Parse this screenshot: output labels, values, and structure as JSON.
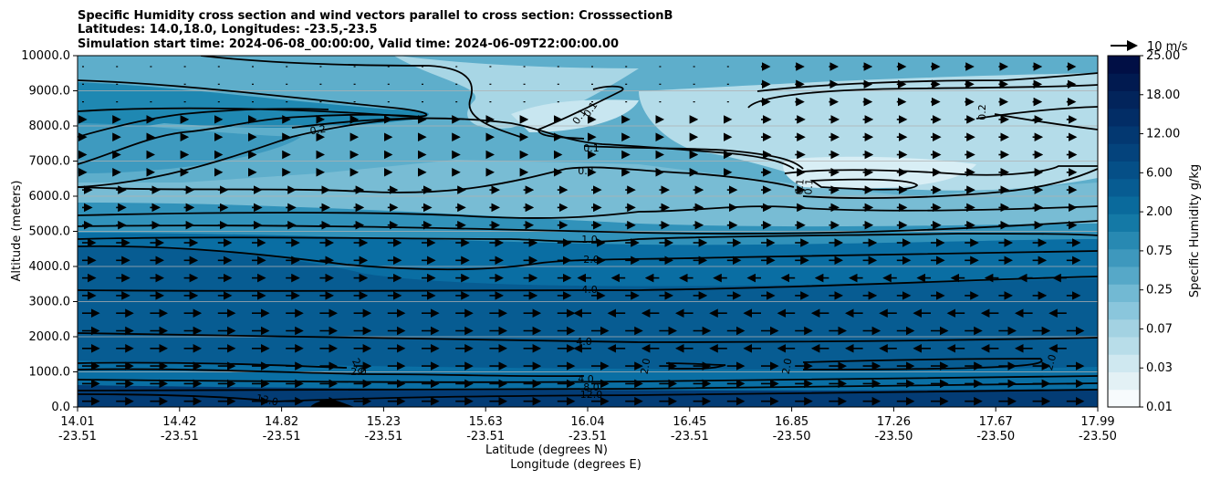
{
  "chart_data": {
    "type": "contour",
    "title_lines": [
      "Specific Humidity cross section and wind vectors parallel to cross section: CrosssectionB",
      "Latitudes: 14.0,18.0, Longitudes: -23.5,-23.5",
      "Simulation start time: 2024-06-08_00:00:00, Valid time: 2024-06-09T22:00:00.00"
    ],
    "ylabel": "Altitude (meters)",
    "xlabel_lat": "Latitude (degrees N)",
    "xlabel_lon": "Longitude (degrees E)",
    "ylim": [
      0,
      10000
    ],
    "yticks": [
      "0.0",
      "1000.0",
      "2000.0",
      "3000.0",
      "4000.0",
      "5000.0",
      "6000.0",
      "7000.0",
      "8000.0",
      "9000.0",
      "10000.0"
    ],
    "xticks_lat": [
      "14.01",
      "14.42",
      "14.82",
      "15.23",
      "15.63",
      "16.04",
      "16.45",
      "16.85",
      "17.26",
      "17.67",
      "17.99"
    ],
    "xticks_lon": [
      "-23.51",
      "-23.51",
      "-23.51",
      "-23.51",
      "-23.51",
      "-23.51",
      "-23.51",
      "-23.50",
      "-23.50",
      "-23.50",
      "-23.50"
    ],
    "colorbar_label": "Specific Humidity g/kg",
    "colorbar_ticks": [
      "0.01",
      "0.03",
      "0.07",
      "0.25",
      "0.75",
      "2.00",
      "6.00",
      "12.00",
      "18.00",
      "25.00"
    ],
    "colorbar_colors": [
      "#f7fbfd",
      "#e3f1f5",
      "#cfe8f0",
      "#b8dde9",
      "#a3d2e2",
      "#8ac6dc",
      "#72b9d3",
      "#56a8c8",
      "#3e98bd",
      "#2889b2",
      "#1479a6",
      "#0a6a9c",
      "#075c92",
      "#054f87",
      "#04437c",
      "#033871",
      "#022d66",
      "#02245b",
      "#011a50",
      "#010f45"
    ],
    "quiver_key": "10 m/s",
    "contour_labels": [
      "0.1",
      "0.1",
      "0.1",
      "0.2",
      "0.2",
      "0.2",
      "0.1",
      "0.1",
      "1.0",
      "2.0",
      "4.0",
      "4.0",
      "2.0",
      "2.0",
      "2.0",
      "2.0",
      "2.0",
      "4.0",
      "8.0",
      "12.0",
      "12.0"
    ]
  }
}
